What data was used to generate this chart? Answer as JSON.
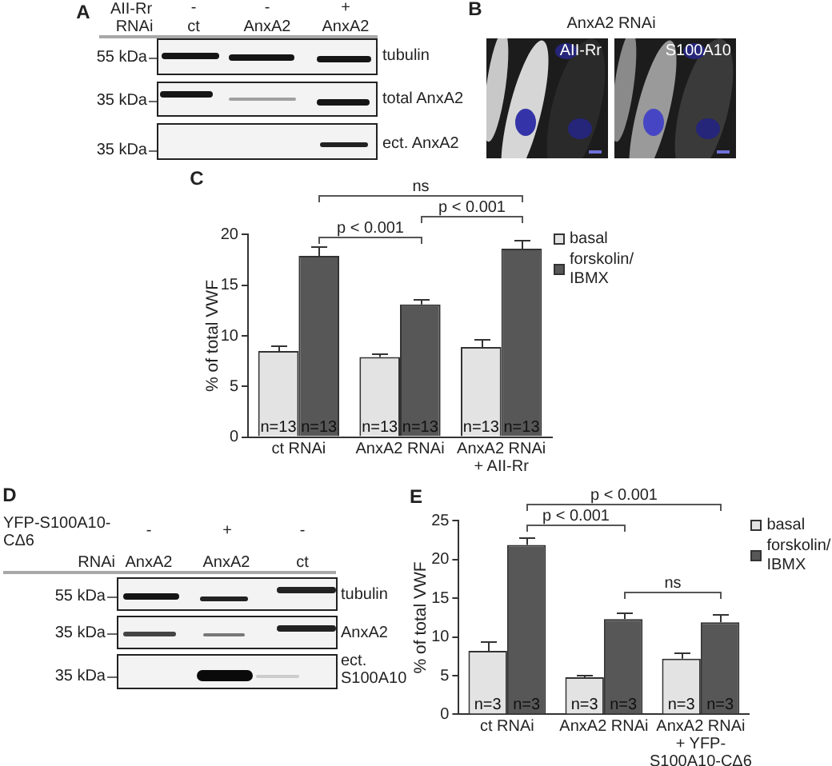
{
  "chart_data": [
    {
      "type": "other",
      "title": "A",
      "annotations": [
        "AII-Rr",
        "-",
        "-",
        "+",
        "RNAi",
        "ct",
        "AnxA2",
        "AnxA2",
        "55 kDa",
        "tubulin",
        "35 kDa",
        "total AnxA2",
        "35 kDa",
        "ect. AnxA2"
      ]
    },
    {
      "type": "other",
      "title": "B",
      "annotations": [
        "AnxA2 RNAi",
        "AII-Rr",
        "S100A10"
      ]
    },
    {
      "type": "bar",
      "title": "C",
      "categories": [
        "ct RNAi",
        "AnxA2 RNAi",
        "AnxA2 RNAi + AII-Rr"
      ],
      "ylabel": "% of total VWF",
      "ylim": [
        0,
        20
      ],
      "yticks": [
        0,
        5,
        10,
        15,
        20
      ],
      "legend": "top right",
      "series": [
        {
          "name": "basal",
          "color": "#e3e3e3",
          "values": [
            8.5,
            7.9,
            8.9
          ],
          "errors": [
            [
              8.5,
              9.0
            ],
            [
              7.9,
              8.3
            ],
            [
              8.9,
              9.7
            ]
          ]
        },
        {
          "name": "forskolin/IBMX",
          "color": "#575757",
          "values": [
            17.9,
            13.1,
            18.6
          ],
          "errors": [
            [
              17.9,
              18.9
            ],
            [
              13.1,
              13.6
            ],
            [
              18.6,
              19.5
            ]
          ]
        }
      ],
      "annotations": [
        "ns",
        "p < 0.001",
        "p < 0.001",
        {
          "text": "n=13",
          "x": "ct RNAi",
          "y": 0
        },
        {
          "text": "n=13",
          "x": "ct RNAi",
          "y": 0
        },
        {
          "text": "n=13",
          "x": "AnxA2 RNAi",
          "y": 0
        },
        {
          "text": "n=13",
          "x": "AnxA2 RNAi",
          "y": 0
        },
        {
          "text": "n=13",
          "x": "AnxA2 RNAi + AII-Rr",
          "y": 0
        },
        {
          "text": "n=13",
          "x": "AnxA2 RNAi + AII-Rr",
          "y": 0
        }
      ]
    },
    {
      "type": "other",
      "title": "D",
      "annotations": [
        "YFP-S100A10-CΔ6",
        "-",
        "+",
        "-",
        "RNAi",
        "AnxA2",
        "AnxA2",
        "ct",
        "55 kDa",
        "tubulin",
        "35 kDa",
        "AnxA2",
        "35 kDa",
        "ect. S100A10"
      ]
    },
    {
      "type": "bar",
      "title": "E",
      "categories": [
        "ct RNAi",
        "AnxA2 RNAi",
        "AnxA2 RNAi + YFP-S100A10-CΔ6"
      ],
      "ylabel": "% of total VWF",
      "ylim": [
        0,
        25
      ],
      "yticks": [
        0,
        5,
        10,
        15,
        20,
        25
      ],
      "legend": "top right",
      "series": [
        {
          "name": "basal",
          "color": "#e3e3e3",
          "values": [
            8.2,
            4.8,
            7.2
          ],
          "errors": [
            [
              8.2,
              9.4
            ],
            [
              4.8,
              5.2
            ],
            [
              7.2,
              8.0
            ]
          ]
        },
        {
          "name": "forskolin/IBMX",
          "color": "#575757",
          "values": [
            21.9,
            12.3,
            11.9
          ],
          "errors": [
            [
              21.9,
              22.9
            ],
            [
              12.3,
              13.1
            ],
            [
              11.9,
              12.9
            ]
          ]
        }
      ],
      "annotations": [
        "p < 0.001",
        "p < 0.001",
        "ns",
        {
          "text": "n=3",
          "x": "ct RNAi",
          "y": 0
        },
        {
          "text": "n=3",
          "x": "ct RNAi",
          "y": 0
        },
        {
          "text": "n=3",
          "x": "AnxA2 RNAi",
          "y": 0
        },
        {
          "text": "n=3",
          "x": "AnxA2 RNAi",
          "y": 0
        },
        {
          "text": "n=3",
          "x": "AnxA2 RNAi + YFP-S100A10-CΔ6",
          "y": 0
        },
        {
          "text": "n=3",
          "x": "AnxA2 RNAi + YFP-S100A10-CΔ6",
          "y": 0
        }
      ]
    }
  ]
}
